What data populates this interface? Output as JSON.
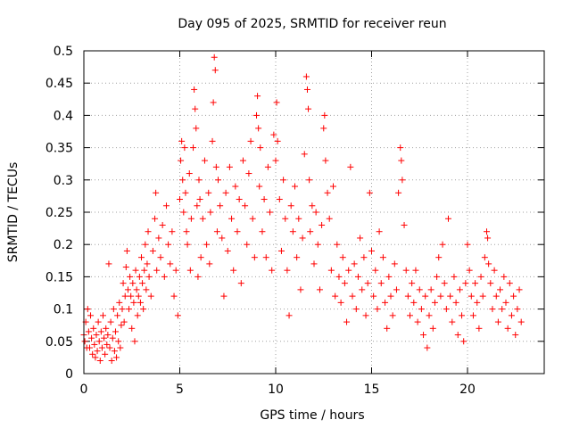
{
  "chart_data": {
    "type": "scatter",
    "title": "Day 095 of 2025, SRMTID for receiver reun",
    "xlabel": "GPS time / hours",
    "ylabel": "SRMTID / TECUs",
    "xlim": [
      0,
      24
    ],
    "ylim": [
      0,
      0.5
    ],
    "grid": true,
    "marker": "+",
    "series_color": "#ff0000",
    "x_ticks": [
      0,
      5,
      10,
      15,
      20
    ],
    "y_ticks": [
      0,
      0.05,
      0.1,
      0.15,
      0.2,
      0.25,
      0.3,
      0.35,
      0.4,
      0.45,
      0.5
    ],
    "x_tick_labels": [
      "0",
      "5",
      "10",
      "15",
      "20"
    ],
    "y_tick_labels": [
      "0",
      "0.05",
      "0.1",
      "0.15",
      "0.2",
      "0.25",
      "0.3",
      "0.35",
      "0.4",
      "0.45",
      "0.5"
    ],
    "series": [
      {
        "name": "SRMTID",
        "points": [
          [
            0.0,
            0.06
          ],
          [
            0.05,
            0.05
          ],
          [
            0.1,
            0.08
          ],
          [
            0.15,
            0.04
          ],
          [
            0.2,
            0.1
          ],
          [
            0.25,
            0.065
          ],
          [
            0.3,
            0.04
          ],
          [
            0.35,
            0.09
          ],
          [
            0.4,
            0.055
          ],
          [
            0.45,
            0.03
          ],
          [
            0.5,
            0.07
          ],
          [
            0.55,
            0.045
          ],
          [
            0.6,
            0.025
          ],
          [
            0.65,
            0.06
          ],
          [
            0.7,
            0.035
          ],
          [
            0.75,
            0.08
          ],
          [
            0.8,
            0.05
          ],
          [
            0.85,
            0.02
          ],
          [
            0.9,
            0.065
          ],
          [
            0.95,
            0.04
          ],
          [
            1.0,
            0.09
          ],
          [
            1.05,
            0.055
          ],
          [
            1.1,
            0.03
          ],
          [
            1.15,
            0.07
          ],
          [
            1.2,
            0.045
          ],
          [
            1.25,
            0.06
          ],
          [
            1.3,
            0.17
          ],
          [
            1.35,
            0.04
          ],
          [
            1.4,
            0.08
          ],
          [
            1.45,
            0.02
          ],
          [
            1.5,
            0.055
          ],
          [
            1.55,
            0.1
          ],
          [
            1.6,
            0.035
          ],
          [
            1.65,
            0.065
          ],
          [
            1.7,
            0.025
          ],
          [
            1.75,
            0.09
          ],
          [
            1.8,
            0.05
          ],
          [
            1.85,
            0.11
          ],
          [
            1.9,
            0.04
          ],
          [
            1.95,
            0.075
          ],
          [
            2.0,
            0.1
          ],
          [
            2.05,
            0.14
          ],
          [
            2.1,
            0.08
          ],
          [
            2.15,
            0.12
          ],
          [
            2.2,
            0.165
          ],
          [
            2.25,
            0.19
          ],
          [
            2.3,
            0.13
          ],
          [
            2.35,
            0.1
          ],
          [
            2.4,
            0.15
          ],
          [
            2.45,
            0.12
          ],
          [
            2.5,
            0.07
          ],
          [
            2.55,
            0.14
          ],
          [
            2.6,
            0.11
          ],
          [
            2.65,
            0.05
          ],
          [
            2.7,
            0.16
          ],
          [
            2.75,
            0.13
          ],
          [
            2.8,
            0.09
          ],
          [
            2.85,
            0.12
          ],
          [
            2.9,
            0.15
          ],
          [
            2.95,
            0.11
          ],
          [
            3.0,
            0.18
          ],
          [
            3.05,
            0.14
          ],
          [
            3.1,
            0.1
          ],
          [
            3.15,
            0.16
          ],
          [
            3.2,
            0.2
          ],
          [
            3.25,
            0.13
          ],
          [
            3.3,
            0.17
          ],
          [
            3.35,
            0.22
          ],
          [
            3.4,
            0.15
          ],
          [
            3.5,
            0.12
          ],
          [
            3.6,
            0.19
          ],
          [
            3.7,
            0.24
          ],
          [
            3.75,
            0.28
          ],
          [
            3.8,
            0.16
          ],
          [
            3.9,
            0.21
          ],
          [
            4.0,
            0.18
          ],
          [
            4.1,
            0.23
          ],
          [
            4.2,
            0.15
          ],
          [
            4.3,
            0.26
          ],
          [
            4.4,
            0.2
          ],
          [
            4.5,
            0.17
          ],
          [
            4.6,
            0.22
          ],
          [
            4.7,
            0.12
          ],
          [
            4.8,
            0.16
          ],
          [
            4.9,
            0.09
          ],
          [
            5.0,
            0.27
          ],
          [
            5.05,
            0.33
          ],
          [
            5.1,
            0.36
          ],
          [
            5.15,
            0.3
          ],
          [
            5.2,
            0.25
          ],
          [
            5.25,
            0.35
          ],
          [
            5.3,
            0.28
          ],
          [
            5.35,
            0.22
          ],
          [
            5.4,
            0.2
          ],
          [
            5.5,
            0.31
          ],
          [
            5.55,
            0.16
          ],
          [
            5.6,
            0.24
          ],
          [
            5.7,
            0.35
          ],
          [
            5.75,
            0.44
          ],
          [
            5.8,
            0.41
          ],
          [
            5.85,
            0.38
          ],
          [
            5.9,
            0.26
          ],
          [
            5.95,
            0.15
          ],
          [
            6.0,
            0.3
          ],
          [
            6.05,
            0.27
          ],
          [
            6.1,
            0.18
          ],
          [
            6.2,
            0.24
          ],
          [
            6.3,
            0.33
          ],
          [
            6.4,
            0.2
          ],
          [
            6.5,
            0.28
          ],
          [
            6.55,
            0.17
          ],
          [
            6.6,
            0.25
          ],
          [
            6.7,
            0.36
          ],
          [
            6.75,
            0.42
          ],
          [
            6.8,
            0.49
          ],
          [
            6.85,
            0.47
          ],
          [
            6.9,
            0.32
          ],
          [
            6.95,
            0.22
          ],
          [
            7.0,
            0.3
          ],
          [
            7.1,
            0.26
          ],
          [
            7.2,
            0.21
          ],
          [
            7.3,
            0.12
          ],
          [
            7.4,
            0.28
          ],
          [
            7.5,
            0.19
          ],
          [
            7.6,
            0.32
          ],
          [
            7.7,
            0.24
          ],
          [
            7.8,
            0.16
          ],
          [
            7.9,
            0.29
          ],
          [
            8.0,
            0.22
          ],
          [
            8.1,
            0.27
          ],
          [
            8.2,
            0.14
          ],
          [
            8.3,
            0.33
          ],
          [
            8.4,
            0.26
          ],
          [
            8.5,
            0.2
          ],
          [
            8.6,
            0.31
          ],
          [
            8.7,
            0.36
          ],
          [
            8.8,
            0.24
          ],
          [
            8.9,
            0.18
          ],
          [
            9.0,
            0.4
          ],
          [
            9.05,
            0.43
          ],
          [
            9.1,
            0.38
          ],
          [
            9.15,
            0.29
          ],
          [
            9.2,
            0.35
          ],
          [
            9.3,
            0.22
          ],
          [
            9.4,
            0.27
          ],
          [
            9.5,
            0.18
          ],
          [
            9.6,
            0.32
          ],
          [
            9.7,
            0.25
          ],
          [
            9.8,
            0.16
          ],
          [
            9.9,
            0.37
          ],
          [
            10.0,
            0.33
          ],
          [
            10.05,
            0.42
          ],
          [
            10.1,
            0.36
          ],
          [
            10.2,
            0.27
          ],
          [
            10.3,
            0.19
          ],
          [
            10.4,
            0.3
          ],
          [
            10.5,
            0.24
          ],
          [
            10.6,
            0.16
          ],
          [
            10.7,
            0.09
          ],
          [
            10.8,
            0.26
          ],
          [
            10.9,
            0.22
          ],
          [
            11.0,
            0.29
          ],
          [
            11.1,
            0.18
          ],
          [
            11.2,
            0.24
          ],
          [
            11.3,
            0.13
          ],
          [
            11.4,
            0.21
          ],
          [
            11.5,
            0.34
          ],
          [
            11.6,
            0.46
          ],
          [
            11.65,
            0.44
          ],
          [
            11.7,
            0.41
          ],
          [
            11.75,
            0.3
          ],
          [
            11.8,
            0.22
          ],
          [
            11.9,
            0.26
          ],
          [
            12.0,
            0.17
          ],
          [
            12.1,
            0.25
          ],
          [
            12.2,
            0.2
          ],
          [
            12.3,
            0.13
          ],
          [
            12.4,
            0.23
          ],
          [
            12.5,
            0.38
          ],
          [
            12.55,
            0.4
          ],
          [
            12.6,
            0.33
          ],
          [
            12.7,
            0.28
          ],
          [
            12.8,
            0.24
          ],
          [
            12.9,
            0.16
          ],
          [
            13.0,
            0.29
          ],
          [
            13.1,
            0.12
          ],
          [
            13.2,
            0.2
          ],
          [
            13.3,
            0.15
          ],
          [
            13.4,
            0.11
          ],
          [
            13.5,
            0.18
          ],
          [
            13.6,
            0.14
          ],
          [
            13.7,
            0.08
          ],
          [
            13.8,
            0.16
          ],
          [
            13.9,
            0.32
          ],
          [
            14.0,
            0.12
          ],
          [
            14.1,
            0.17
          ],
          [
            14.2,
            0.1
          ],
          [
            14.3,
            0.15
          ],
          [
            14.4,
            0.21
          ],
          [
            14.5,
            0.13
          ],
          [
            14.6,
            0.18
          ],
          [
            14.7,
            0.09
          ],
          [
            14.8,
            0.14
          ],
          [
            14.9,
            0.28
          ],
          [
            15.0,
            0.19
          ],
          [
            15.1,
            0.12
          ],
          [
            15.2,
            0.16
          ],
          [
            15.3,
            0.1
          ],
          [
            15.4,
            0.22
          ],
          [
            15.5,
            0.14
          ],
          [
            15.6,
            0.18
          ],
          [
            15.7,
            0.11
          ],
          [
            15.8,
            0.07
          ],
          [
            15.9,
            0.15
          ],
          [
            16.0,
            0.12
          ],
          [
            16.1,
            0.09
          ],
          [
            16.2,
            0.17
          ],
          [
            16.3,
            0.13
          ],
          [
            16.4,
            0.28
          ],
          [
            16.5,
            0.35
          ],
          [
            16.55,
            0.33
          ],
          [
            16.6,
            0.3
          ],
          [
            16.7,
            0.23
          ],
          [
            16.8,
            0.16
          ],
          [
            16.9,
            0.12
          ],
          [
            17.0,
            0.09
          ],
          [
            17.1,
            0.14
          ],
          [
            17.2,
            0.11
          ],
          [
            17.3,
            0.16
          ],
          [
            17.4,
            0.08
          ],
          [
            17.5,
            0.13
          ],
          [
            17.6,
            0.1
          ],
          [
            17.7,
            0.06
          ],
          [
            17.8,
            0.12
          ],
          [
            17.9,
            0.04
          ],
          [
            18.0,
            0.09
          ],
          [
            18.1,
            0.13
          ],
          [
            18.2,
            0.07
          ],
          [
            18.3,
            0.11
          ],
          [
            18.4,
            0.15
          ],
          [
            18.5,
            0.18
          ],
          [
            18.6,
            0.12
          ],
          [
            18.7,
            0.2
          ],
          [
            18.8,
            0.14
          ],
          [
            18.9,
            0.1
          ],
          [
            19.0,
            0.24
          ],
          [
            19.1,
            0.12
          ],
          [
            19.2,
            0.08
          ],
          [
            19.3,
            0.15
          ],
          [
            19.4,
            0.11
          ],
          [
            19.5,
            0.06
          ],
          [
            19.6,
            0.13
          ],
          [
            19.7,
            0.09
          ],
          [
            19.8,
            0.05
          ],
          [
            19.9,
            0.14
          ],
          [
            20.0,
            0.2
          ],
          [
            20.1,
            0.16
          ],
          [
            20.2,
            0.12
          ],
          [
            20.3,
            0.09
          ],
          [
            20.4,
            0.14
          ],
          [
            20.5,
            0.11
          ],
          [
            20.6,
            0.07
          ],
          [
            20.7,
            0.15
          ],
          [
            20.8,
            0.12
          ],
          [
            20.9,
            0.18
          ],
          [
            21.0,
            0.22
          ],
          [
            21.05,
            0.21
          ],
          [
            21.1,
            0.17
          ],
          [
            21.2,
            0.14
          ],
          [
            21.3,
            0.1
          ],
          [
            21.4,
            0.16
          ],
          [
            21.5,
            0.12
          ],
          [
            21.6,
            0.08
          ],
          [
            21.7,
            0.13
          ],
          [
            21.8,
            0.1
          ],
          [
            21.9,
            0.15
          ],
          [
            22.0,
            0.11
          ],
          [
            22.1,
            0.07
          ],
          [
            22.2,
            0.14
          ],
          [
            22.3,
            0.09
          ],
          [
            22.4,
            0.12
          ],
          [
            22.5,
            0.06
          ],
          [
            22.6,
            0.1
          ],
          [
            22.7,
            0.13
          ],
          [
            22.8,
            0.08
          ]
        ]
      }
    ]
  }
}
